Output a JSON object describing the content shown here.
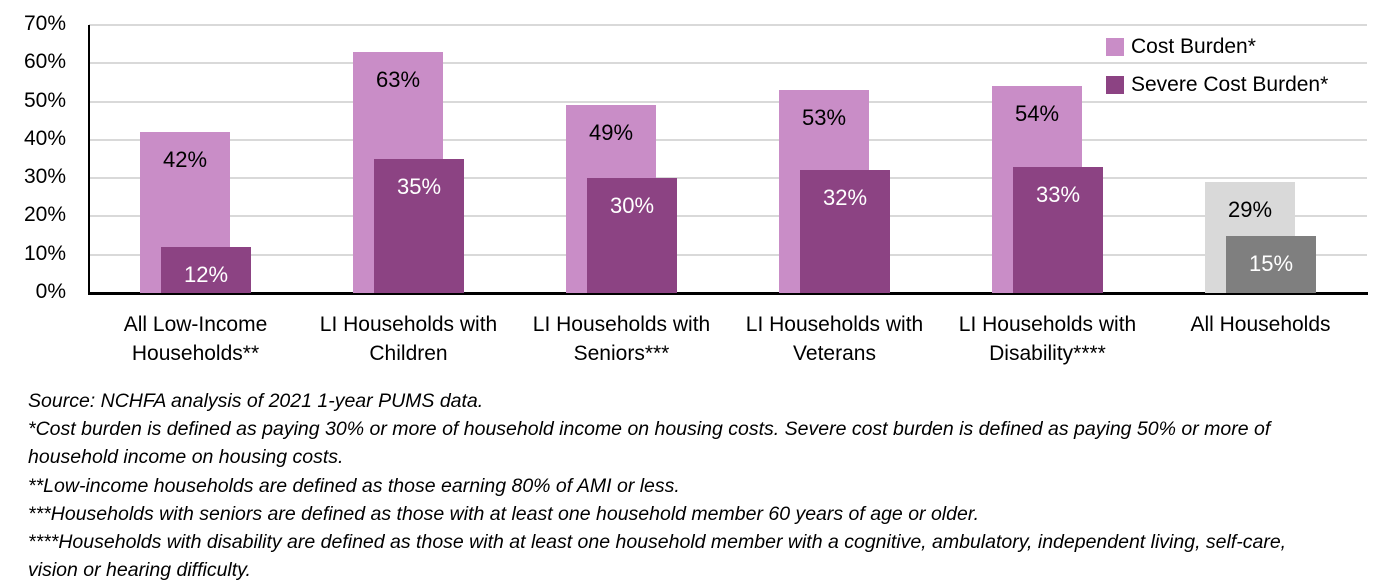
{
  "chart_data": {
    "type": "bar",
    "title": "",
    "xlabel": "",
    "ylabel": "",
    "categories": [
      "All Low-Income Households**",
      "LI Households with Children",
      "LI Households with Seniors***",
      "LI Households with Veterans",
      "LI Households with Disability****",
      "All Households"
    ],
    "series": [
      {
        "name": "Cost Burden*",
        "values": [
          42,
          63,
          49,
          53,
          54,
          29
        ],
        "color": "#c98dc7",
        "point_colors": [
          "#c98dc7",
          "#c98dc7",
          "#c98dc7",
          "#c98dc7",
          "#c98dc7",
          "#d9d9d9"
        ],
        "label_color": "#000000",
        "data_labels": [
          "42%",
          "63%",
          "49%",
          "53%",
          "54%",
          "29%"
        ]
      },
      {
        "name": "Severe Cost Burden*",
        "values": [
          12,
          35,
          30,
          32,
          33,
          15
        ],
        "color": "#8c4383",
        "point_colors": [
          "#8c4383",
          "#8c4383",
          "#8c4383",
          "#8c4383",
          "#8c4383",
          "#7f7f7f"
        ],
        "label_color": "#ffffff",
        "data_labels": [
          "12%",
          "35%",
          "30%",
          "32%",
          "33%",
          "15%"
        ]
      }
    ],
    "ylim": [
      0,
      70
    ],
    "ytick_labels": [
      "0%",
      "10%",
      "20%",
      "30%",
      "40%",
      "50%",
      "60%",
      "70%"
    ],
    "grid": true,
    "legend_position": "top-right"
  },
  "colors": {
    "gridline": "#d9d9d9",
    "axis": "#000000",
    "background": "#ffffff"
  },
  "footnotes": {
    "lines": [
      "Source: NCHFA analysis of 2021 1-year PUMS data.",
      "*Cost burden is defined as paying 30% or more of household income on housing costs. Severe cost burden is defined as paying 50% or more of",
      "household income on housing costs.",
      "**Low-income households are defined as those earning 80% of AMI or less.",
      "***Households with seniors are defined as those with at least one household member 60 years of age or older.",
      "****Households with disability are defined as those with at least one household member with a cognitive, ambulatory, independent living, self-care,",
      "vision or hearing difficulty."
    ]
  }
}
